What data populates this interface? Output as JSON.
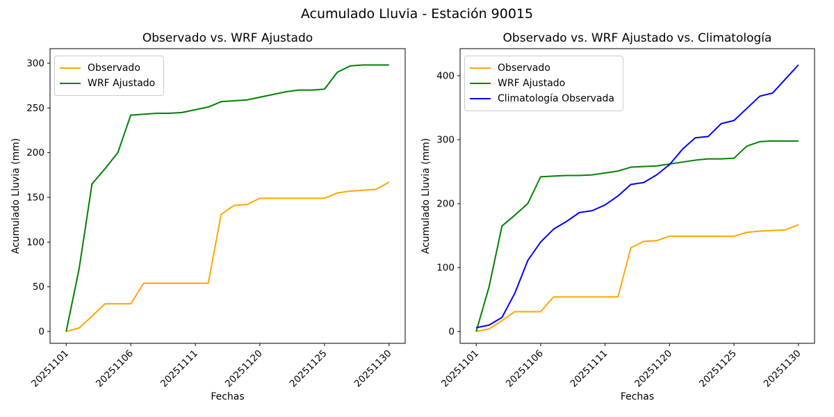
{
  "figure": {
    "suptitle": "Acumulado Lluvia - Estación 90015",
    "background": "#ffffff",
    "text_color": "#000000"
  },
  "chart_data": [
    {
      "type": "line",
      "title": "Observado vs. WRF Ajustado",
      "xlabel": "Fechas",
      "ylabel": "Acumulado Lluvia (mm)",
      "legend_position": "upper-left",
      "grid": false,
      "x": [
        "20251101",
        "20251102",
        "20251103",
        "20251104",
        "20251105",
        "20251106",
        "20251107",
        "20251108",
        "20251109",
        "20251110",
        "20251111",
        "20251116",
        "20251117",
        "20251118",
        "20251119",
        "20251120",
        "20251121",
        "20251122",
        "20251123",
        "20251124",
        "20251125",
        "20251126",
        "20251127",
        "20251128",
        "20251129",
        "20251130"
      ],
      "xtick_indices": [
        0,
        5,
        10,
        15,
        20,
        25
      ],
      "yticks": [
        0,
        50,
        100,
        150,
        200,
        250,
        300
      ],
      "ylim": [
        -13.2,
        316.3
      ],
      "xlim": [
        -1.25,
        26.25
      ],
      "series": [
        {
          "name": "Observado",
          "color": "#FFA500",
          "values": [
            0,
            4,
            17,
            31,
            31,
            31,
            54,
            54,
            54,
            54,
            54,
            54,
            131,
            141,
            142,
            149,
            149,
            149,
            149,
            149,
            149,
            155,
            157,
            158,
            159,
            167
          ]
        },
        {
          "name": "WRF Ajustado",
          "color": "#008000",
          "values": [
            0,
            70,
            165,
            182,
            200,
            242,
            243,
            244,
            244,
            245,
            248,
            251,
            257,
            258,
            259,
            262,
            265,
            268,
            270,
            270,
            271,
            290,
            297,
            298,
            298,
            298
          ]
        }
      ]
    },
    {
      "type": "line",
      "title": "Observado vs. WRF Ajustado vs. Climatología",
      "xlabel": "Fechas",
      "ylabel": "Acumulado Lluvia (mm)",
      "legend_position": "upper-left",
      "grid": false,
      "x": [
        "20251101",
        "20251102",
        "20251103",
        "20251104",
        "20251105",
        "20251106",
        "20251107",
        "20251108",
        "20251109",
        "20251110",
        "20251111",
        "20251116",
        "20251117",
        "20251118",
        "20251119",
        "20251120",
        "20251121",
        "20251122",
        "20251123",
        "20251124",
        "20251125",
        "20251126",
        "20251127",
        "20251128",
        "20251129",
        "20251130"
      ],
      "xtick_indices": [
        0,
        5,
        10,
        15,
        20,
        25
      ],
      "yticks": [
        0,
        100,
        200,
        300,
        400
      ],
      "ylim": [
        -18.5,
        442.4
      ],
      "xlim": [
        -1.25,
        26.25
      ],
      "series": [
        {
          "name": "Observado",
          "color": "#FFA500",
          "values": [
            0,
            4,
            17,
            31,
            31,
            31,
            54,
            54,
            54,
            54,
            54,
            54,
            131,
            141,
            142,
            149,
            149,
            149,
            149,
            149,
            149,
            155,
            157,
            158,
            159,
            167
          ]
        },
        {
          "name": "WRF Ajustado",
          "color": "#008000",
          "values": [
            0,
            70,
            165,
            182,
            200,
            242,
            243,
            244,
            244,
            245,
            248,
            251,
            257,
            258,
            259,
            262,
            265,
            268,
            270,
            270,
            271,
            290,
            297,
            298,
            298,
            298
          ]
        },
        {
          "name": "Climatología Observada",
          "color": "#0000FF",
          "values": [
            6,
            10,
            22,
            60,
            111,
            140,
            160,
            172,
            186,
            189,
            198,
            212,
            230,
            233,
            245,
            261,
            285,
            303,
            305,
            325,
            330,
            349,
            368,
            373,
            395,
            417
          ]
        }
      ]
    }
  ]
}
